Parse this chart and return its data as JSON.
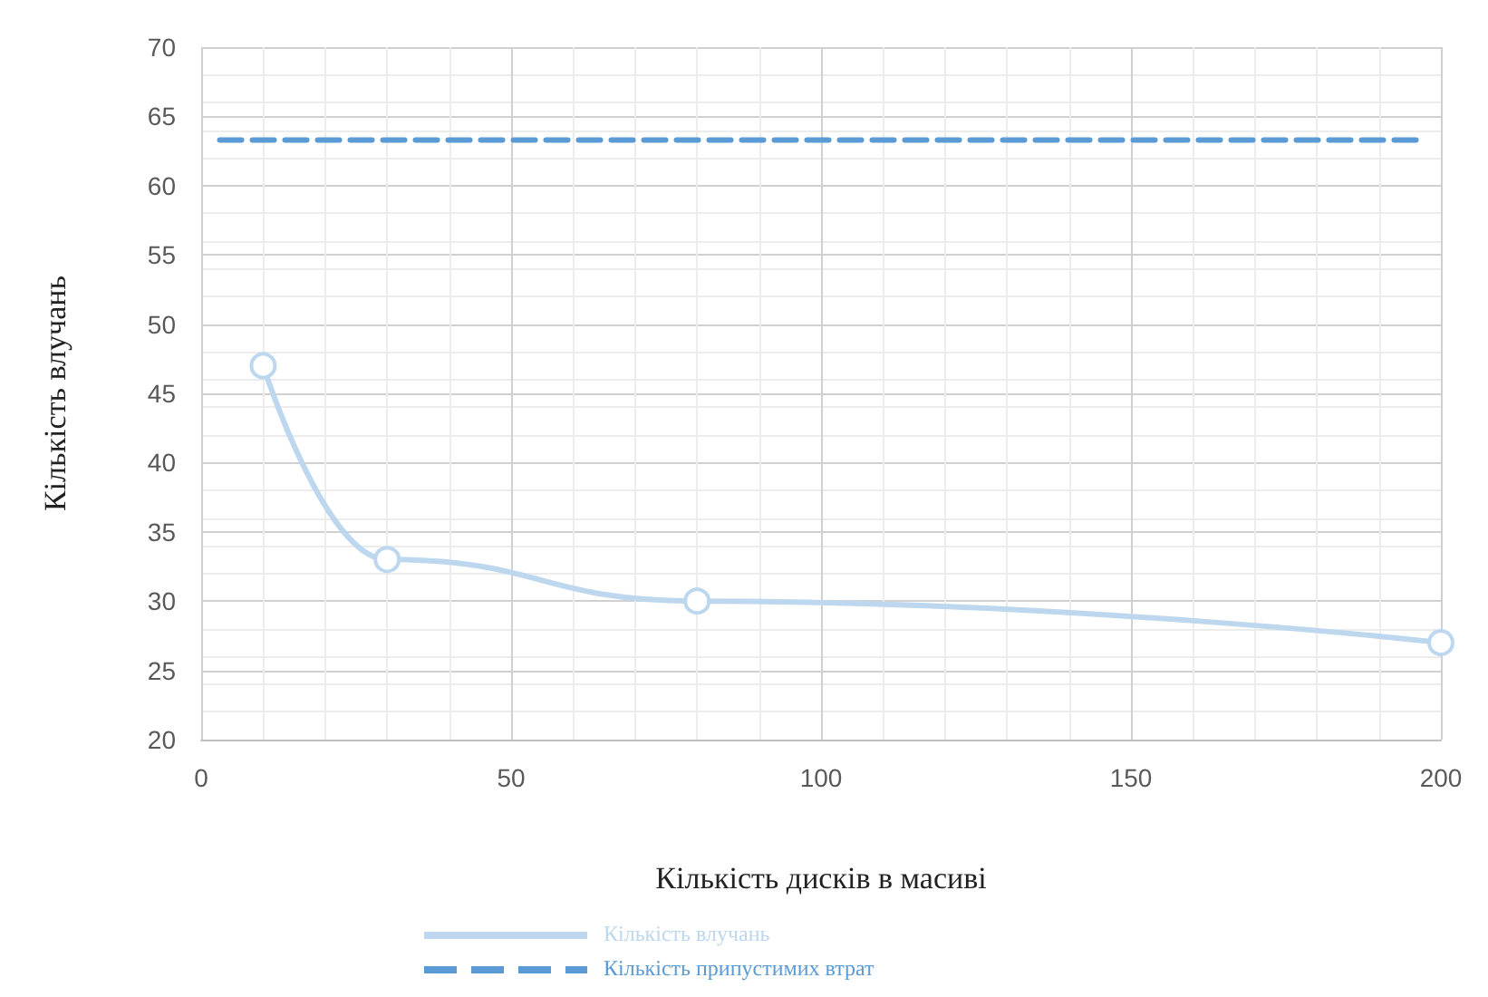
{
  "chart_data": {
    "type": "line",
    "xlabel": "Кількість дисків в масиві",
    "ylabel": "Кількість влучань",
    "xlim": [
      0,
      200
    ],
    "xticks": [
      0,
      50,
      100,
      150,
      200
    ],
    "ylim": [
      20,
      70
    ],
    "yticks": [
      20,
      25,
      30,
      35,
      40,
      45,
      50,
      55,
      60,
      65,
      70
    ],
    "grid": true,
    "legend": "bottom",
    "series": [
      {
        "name": "Кількість влучань",
        "color": "#bdd7ee",
        "x": [
          10,
          30,
          80,
          200
        ],
        "values": [
          47,
          33,
          30,
          27
        ],
        "marker": "circle",
        "line_style": "solid"
      },
      {
        "name": "Кількість припустимих втрат",
        "color": "#5b9bd5",
        "x": [
          3,
          196
        ],
        "values": [
          63.3,
          63.3
        ],
        "marker": "none",
        "line_style": "dashed"
      }
    ]
  }
}
